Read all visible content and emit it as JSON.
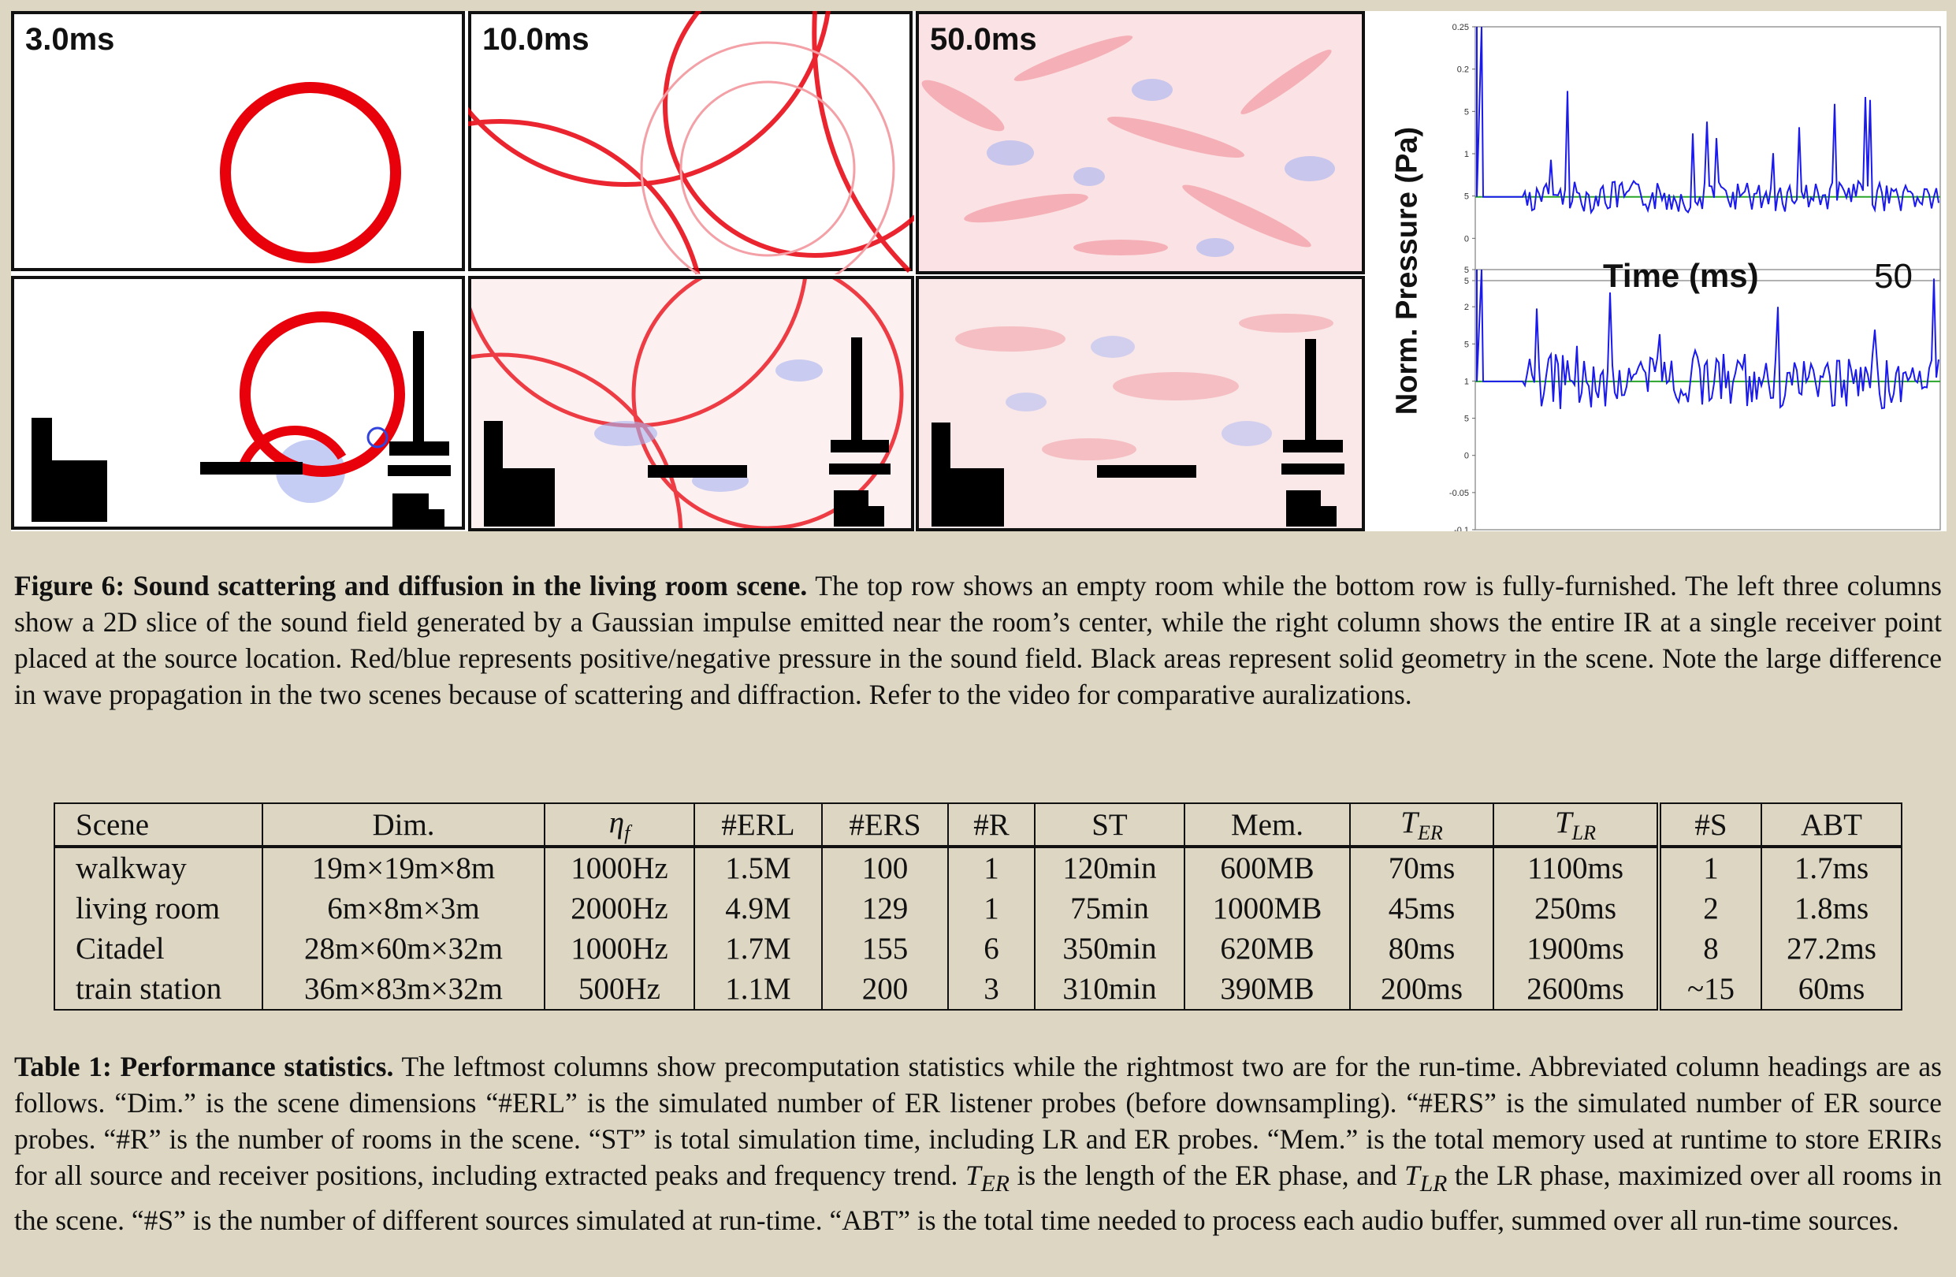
{
  "figure": {
    "panel_labels": [
      "3.0ms",
      "10.0ms",
      "50.0ms"
    ],
    "ir_plot": {
      "ylabel": "Norm. Pressure (Pa)",
      "xlabel": "Time (ms)",
      "x_end_label": "50",
      "top_ticks": [
        "0.25",
        "0.2",
        "5",
        "1",
        "5",
        "0",
        "5"
      ],
      "bottom_ticks": [
        "5",
        "2",
        "5",
        "1",
        "5",
        "0",
        "-0.05",
        "-0.1"
      ],
      "line_color": "#1a1aee",
      "baseline_color": "#2aa52a"
    },
    "colors": {
      "positive": "#e8000b",
      "negative": "#3344dd",
      "geometry": "#000000"
    }
  },
  "fig_caption": {
    "bold": "Figure 6: Sound scattering and diffusion in the living room scene.",
    "text": " The top row shows an empty room while the bottom row is fully-furnished. The left three columns show a 2D slice of the sound field generated by a Gaussian impulse emitted near the room’s center, while the right column shows the entire IR at a single receiver point placed at the source location. Red/blue represents positive/negative pressure in the sound field. Black areas represent solid geometry in the scene. Note the large difference in wave propagation in the two scenes because of scattering and diffraction. Refer to the video for comparative auralizations."
  },
  "table": {
    "headers": {
      "scene": "Scene",
      "dim": "Dim.",
      "eta_base": "η",
      "eta_sub": "f",
      "erl": "#ERL",
      "ers": "#ERS",
      "r": "#R",
      "st": "ST",
      "mem": "Mem.",
      "ter_base": "T",
      "ter_sub": "ER",
      "tlr_base": "T",
      "tlr_sub": "LR",
      "s": "#S",
      "abt": "ABT"
    },
    "rows": [
      {
        "scene": "walkway",
        "dim": "19m×19m×8m",
        "eta": "1000Hz",
        "erl": "1.5M",
        "ers": "100",
        "r": "1",
        "st": "120min",
        "mem": "600MB",
        "ter": "70ms",
        "tlr": "1100ms",
        "s": "1",
        "abt": "1.7ms"
      },
      {
        "scene": "living room",
        "dim": "6m×8m×3m",
        "eta": "2000Hz",
        "erl": "4.9M",
        "ers": "129",
        "r": "1",
        "st": "75min",
        "mem": "1000MB",
        "ter": "45ms",
        "tlr": "250ms",
        "s": "2",
        "abt": "1.8ms"
      },
      {
        "scene": "Citadel",
        "dim": "28m×60m×32m",
        "eta": "1000Hz",
        "erl": "1.7M",
        "ers": "155",
        "r": "6",
        "st": "350min",
        "mem": "620MB",
        "ter": "80ms",
        "tlr": "1900ms",
        "s": "8",
        "abt": "27.2ms"
      },
      {
        "scene": "train station",
        "dim": "36m×83m×32m",
        "eta": "500Hz",
        "erl": "1.1M",
        "ers": "200",
        "r": "3",
        "st": "310min",
        "mem": "390MB",
        "ter": "200ms",
        "tlr": "2600ms",
        "s": "~15",
        "abt": "60ms"
      }
    ]
  },
  "tab_caption": {
    "bold": "Table 1: Performance statistics.",
    "p1": " The leftmost columns show precomputation statistics while the rightmost two are for the run-time. Abbreviated column headings are as follows. “Dim.” is the scene dimensions “#ERL” is the simulated number of ER listener probes (before downsampling). “#ERS” is the simulated number of ER source probes. “#R” is the number of rooms in the scene. “ST” is total simulation time, including LR and ER probes. “Mem.” is the total memory used at runtime to store ERIRs for all source and receiver positions, including extracted peaks and frequency trend. ",
    "ter_base": "T",
    "ter_sub": "ER",
    "p2": " is the length of the ER phase, and ",
    "tlr_base": "T",
    "tlr_sub": "LR",
    "p3": " the LR phase, maximized over all rooms in the scene. “#S” is the number of different sources simulated at run-time. “ABT” is the total time needed to process each audio buffer, summed over all run-time sources."
  }
}
